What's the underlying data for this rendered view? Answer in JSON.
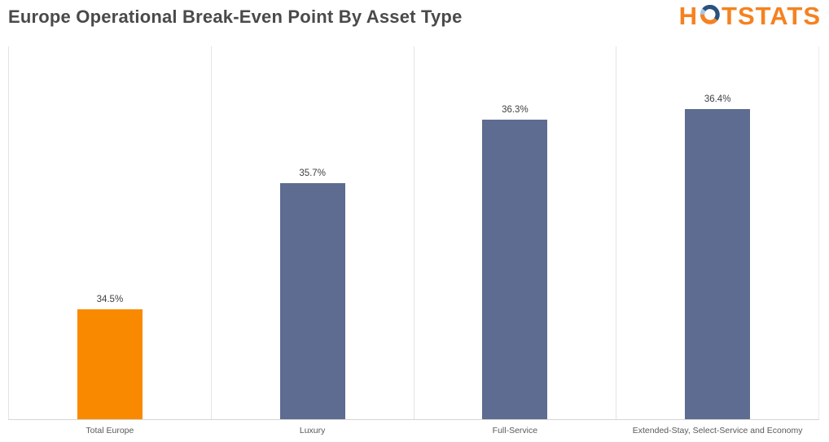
{
  "header": {
    "title": "Europe Operational Break-Even Point By Asset Type",
    "logo": {
      "prefix": "H",
      "o_icon": "two-tone-ring",
      "suffix": "TSTATS",
      "orange": "#f58220",
      "navy": "#29527d",
      "pale_blue": "#a9c7e4"
    }
  },
  "chart_data": {
    "type": "bar",
    "title": "Europe Operational Break-Even Point By Asset Type",
    "categories": [
      "Total Europe",
      "Luxury",
      "Full-Service",
      "Extended-Stay, Select-Service and Economy"
    ],
    "values": [
      34.5,
      35.7,
      36.3,
      36.4
    ],
    "labels": [
      "34.5%",
      "35.7%",
      "36.3%",
      "36.4%"
    ],
    "colors": [
      "#f98a00",
      "#5d6c90",
      "#5d6c90",
      "#5d6c90"
    ],
    "xlabel": "",
    "ylabel": "",
    "ylim": [
      33.45,
      37.0
    ],
    "y_axis_labels_visible": false,
    "grid": "vertical-category-separators",
    "legend_position": "none",
    "data_labels": "above-bars"
  }
}
